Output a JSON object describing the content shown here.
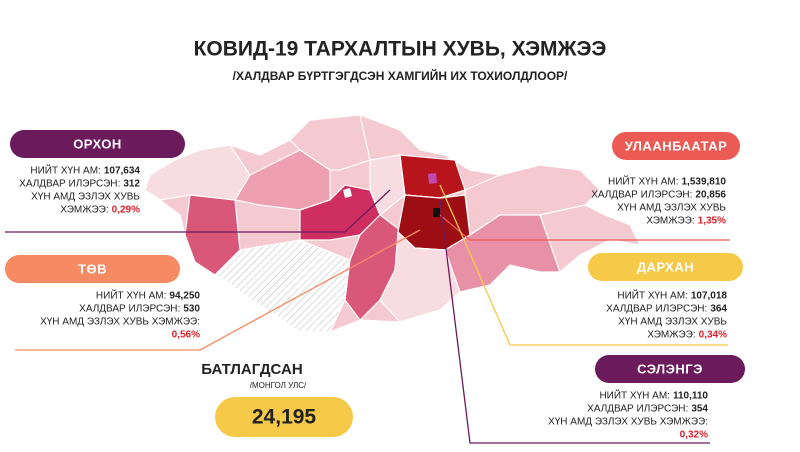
{
  "header": {
    "title": "КОВИД-19 ТАРХАЛТЫН ХУВЬ, ХЭМЖЭЭ",
    "subtitle": "/ХАЛДВАР БҮРТГЭГДСЭН ХАМГИЙН ИХ ТОХИОЛДЛООР/"
  },
  "regions": [
    {
      "name": "ОРХОН",
      "population_label": "НИЙТ ХҮН АМ:",
      "population": "107,634",
      "infected_label": "ХАЛДВАР ИЛЭРСЭН:",
      "infected": "312",
      "share_label_lines": [
        "ХҮН АМД ЭЗЛЭХ ХУВЬ",
        "ХЭМЖЭЭ:"
      ],
      "share": "0,29%"
    },
    {
      "name": "ТӨВ",
      "population_label": "НИЙТ ХҮН АМ:",
      "population": "94,250",
      "infected_label": "ХАЛДВАР ИЛЭРСЭН:",
      "infected": "530",
      "share_label_lines": [
        "ХҮН АМД ЭЗЛЭХ ХУВЬ ХЭМЖЭЭ:"
      ],
      "share": "0,56%"
    },
    {
      "name": "УЛААНБААТАР",
      "population_label": "НИЙТ ХҮН АМ:",
      "population": "1,539,810",
      "infected_label": "ХАЛДВАР ИЛЭРСЭН:",
      "infected": "20,856",
      "share_label_lines": [
        "ХҮН АМД ЭЗЛЭХ ХУВЬ",
        "ХЭМЖЭЭ:"
      ],
      "share": "1,35%"
    },
    {
      "name": "ДАРХАН",
      "population_label": "НИЙТ ХҮН АМ:",
      "population": "107,018",
      "infected_label": "ХАЛДВАР ИЛЭРСЭН:",
      "infected": "364",
      "share_label_lines": [
        "ХҮН АМД ЭЗЛЭХ ХУВЬ",
        "ХЭМЖЭЭ:"
      ],
      "share": "0,34%"
    },
    {
      "name": "СЭЛЭНГЭ",
      "population_label": "НИЙТ ХҮН АМ:",
      "population": "110,110",
      "infected_label": "ХАЛДВАР ИЛЭРСЭН:",
      "infected": "354",
      "share_label_lines": [
        "ХҮН АМД ЭЗЛЭХ ХУВЬ ХЭМЖЭЭ:"
      ],
      "share": "0,32%"
    }
  ],
  "confirmed": {
    "label": "БАТЛАГДСАН",
    "sublabel": "/МОНГОЛ УЛС/",
    "value": "24,195"
  }
}
